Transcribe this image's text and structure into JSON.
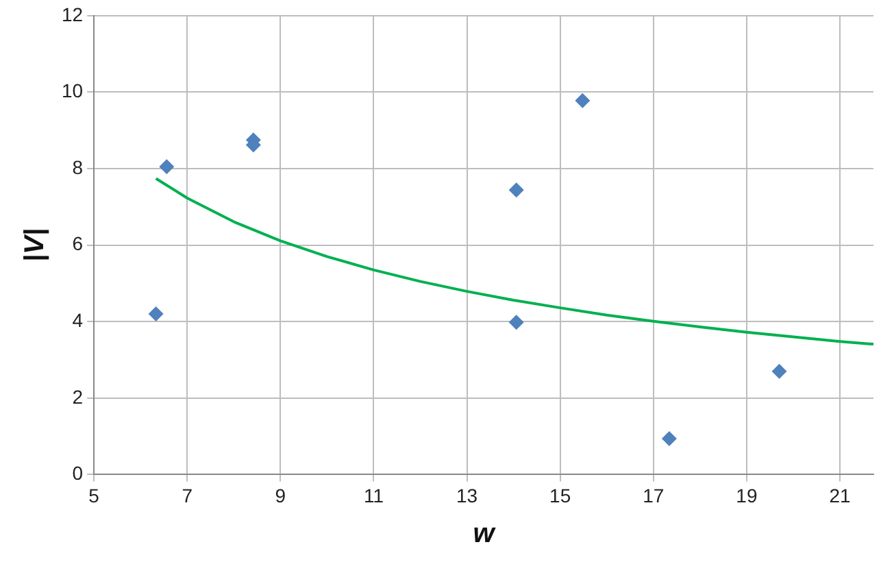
{
  "chart_data": {
    "type": "scatter",
    "xlabel": "w",
    "ylabel": "|V|",
    "marker": "diamond",
    "grid": true,
    "legend": false,
    "xlim": [
      5,
      21.72
    ],
    "xticks": [
      5,
      7,
      9,
      11,
      13,
      15,
      17,
      19,
      21
    ],
    "ylim": [
      0,
      12
    ],
    "yticks": [
      0,
      2,
      4,
      6,
      8,
      10,
      12
    ],
    "series": [
      {
        "color": "#4f81bd",
        "x": [
          6.33,
          6.56,
          8.42,
          8.42,
          14.06,
          14.06,
          15.48,
          17.34,
          19.7
        ],
        "values": [
          4.2,
          8.05,
          8.75,
          8.62,
          7.44,
          3.98,
          9.78,
          0.94,
          2.7
        ]
      },
      {
        "type": "line",
        "color": "#00b050",
        "marker": "none",
        "x": [
          6.33,
          7,
          8,
          9,
          10,
          11,
          12,
          13,
          14,
          15,
          16,
          17,
          18,
          19,
          20,
          21,
          21.72
        ],
        "values": [
          7.74,
          7.23,
          6.61,
          6.11,
          5.7,
          5.35,
          5.05,
          4.79,
          4.56,
          4.36,
          4.17,
          4.01,
          3.86,
          3.72,
          3.6,
          3.48,
          3.41
        ]
      }
    ]
  }
}
